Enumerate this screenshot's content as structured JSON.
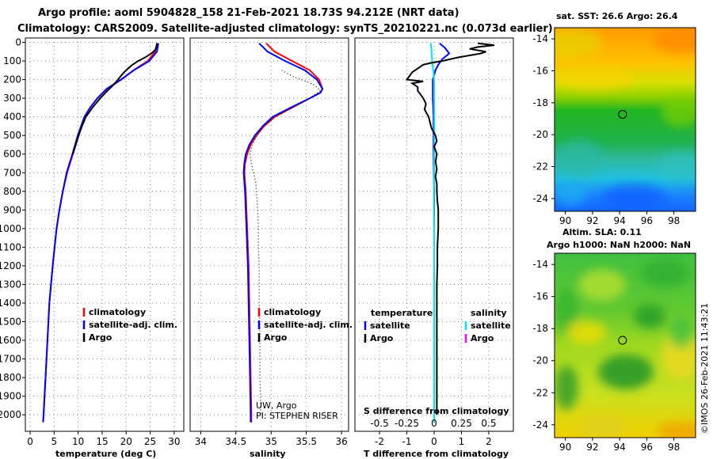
{
  "header": {
    "line1": "Argo profile: aoml 5904828_158 21-Feb-2021 18.73S 94.212E (NRT data)",
    "line2": "Climatology: CARS2009. Satellite-adjusted climatology: synTS_20210221.nc (0.073d earlier)"
  },
  "maps": {
    "top_title": "sat. SST: 26.6 Argo: 26.4",
    "mid_title1": "Altim. SLA: 0.11",
    "mid_title2": "Argo h1000: NaN h2000: NaN",
    "watermark": "©IMOS 26-Feb-2021 11:43:21"
  },
  "colors": {
    "climatology": "#ff0000",
    "satellite": "#0000ff",
    "argo": "#000000",
    "sat_salinity": "#00e5e5",
    "argo_salinity": "#ff00ff"
  },
  "chart_data": [
    {
      "type": "line",
      "panel": "temperature",
      "xlabel": "temperature (deg C)",
      "xticks": [
        0,
        5,
        10,
        15,
        20,
        25,
        30
      ],
      "xlim": [
        -1,
        32
      ],
      "ylim": [
        2080,
        -15
      ],
      "yticks": [
        0,
        100,
        200,
        300,
        400,
        500,
        600,
        700,
        800,
        900,
        1000,
        1100,
        1200,
        1300,
        1400,
        1500,
        1600,
        1700,
        1800,
        1900,
        2000
      ],
      "legend": [
        {
          "label": "climatology",
          "color": "#ff0000"
        },
        {
          "label": "satellite-adj. clim.",
          "color": "#0000ff"
        },
        {
          "label": "Argo",
          "color": "#000000"
        }
      ],
      "series": [
        {
          "name": "climatology",
          "color": "#ff0000",
          "depth": [
            5,
            50,
            100,
            150,
            200,
            250,
            300,
            350,
            400,
            500,
            600,
            700,
            800,
            900,
            1000,
            1200,
            1400,
            1600,
            1800,
            2000,
            2040
          ],
          "values": [
            26.5,
            26.0,
            24.5,
            21.5,
            19.0,
            16.0,
            14.0,
            12.5,
            11.3,
            10.0,
            8.9,
            7.7,
            6.8,
            6.1,
            5.5,
            4.7,
            4.0,
            3.6,
            3.2,
            2.8,
            2.7
          ]
        },
        {
          "name": "satellite-adj. clim.",
          "color": "#0000ff",
          "depth": [
            5,
            50,
            100,
            150,
            200,
            250,
            300,
            350,
            400,
            500,
            600,
            700,
            800,
            900,
            1000,
            1200,
            1400,
            1600,
            1800,
            2000,
            2040
          ],
          "values": [
            26.7,
            26.4,
            24.8,
            21.6,
            18.9,
            15.9,
            14.0,
            12.5,
            11.3,
            9.9,
            8.8,
            7.6,
            6.8,
            6.1,
            5.5,
            4.7,
            4.0,
            3.6,
            3.2,
            2.8,
            2.7
          ]
        },
        {
          "name": "Argo",
          "color": "#000000",
          "depth": [
            5,
            20,
            40,
            60,
            80,
            100,
            120,
            140,
            160,
            180,
            200,
            230,
            260,
            300,
            350,
            400,
            450,
            500,
            550,
            600
          ],
          "values": [
            26.4,
            26.3,
            26.1,
            25.2,
            24.0,
            22.5,
            21.3,
            20.4,
            19.6,
            18.9,
            18.3,
            17.3,
            16.1,
            14.6,
            13.0,
            11.6,
            10.8,
            10.1,
            9.5,
            8.9
          ]
        }
      ]
    },
    {
      "type": "line",
      "panel": "salinity",
      "xlabel": "salinity",
      "xticks": [
        34,
        34.5,
        35,
        35.5,
        36
      ],
      "xlim": [
        33.85,
        36.1
      ],
      "ylim": [
        2080,
        -15
      ],
      "legend": [
        {
          "label": "climatology",
          "color": "#ff0000"
        },
        {
          "label": "satellite-adj. clim.",
          "color": "#0000ff"
        },
        {
          "label": "Argo",
          "color": "#000000"
        }
      ],
      "annotations": [
        "UW, Argo",
        "PI: STEPHEN RISER"
      ],
      "series": [
        {
          "name": "climatology",
          "color": "#ff0000",
          "depth": [
            5,
            50,
            100,
            150,
            200,
            250,
            270,
            300,
            350,
            400,
            450,
            500,
            550,
            600,
            650,
            700,
            750,
            800,
            900,
            1000,
            1200,
            1400,
            1600,
            1800,
            2000,
            2040
          ],
          "values": [
            34.93,
            35.05,
            35.3,
            35.55,
            35.68,
            35.73,
            35.7,
            35.55,
            35.3,
            35.05,
            34.9,
            34.79,
            34.71,
            34.66,
            34.63,
            34.62,
            34.63,
            34.64,
            34.65,
            34.66,
            34.68,
            34.69,
            34.7,
            34.71,
            34.72,
            34.72
          ]
        },
        {
          "name": "satellite-adj. clim.",
          "color": "#0000ff",
          "depth": [
            5,
            50,
            100,
            150,
            200,
            250,
            270,
            300,
            350,
            400,
            450,
            500,
            550,
            600,
            650,
            700,
            750,
            800,
            900,
            1000,
            1200,
            1400,
            1600,
            1800,
            2000,
            2040
          ],
          "values": [
            34.83,
            34.95,
            35.2,
            35.48,
            35.65,
            35.73,
            35.7,
            35.55,
            35.28,
            35.02,
            34.88,
            34.77,
            34.69,
            34.64,
            34.62,
            34.61,
            34.62,
            34.63,
            34.64,
            34.65,
            34.67,
            34.68,
            34.69,
            34.7,
            34.71,
            34.71
          ]
        },
        {
          "name": "Argo",
          "color": "#000000",
          "depth": [
            150,
            170,
            190,
            210,
            230,
            260,
            300,
            350,
            400,
            450,
            500,
            550,
            600,
            650,
            700,
            750,
            800,
            850,
            900,
            1000,
            1100,
            1200,
            1300,
            1400,
            1500,
            1600,
            1700,
            1800,
            1900,
            2000
          ],
          "values": [
            35.15,
            35.25,
            35.35,
            35.5,
            35.62,
            35.7,
            35.55,
            35.3,
            35.05,
            34.9,
            34.8,
            34.73,
            34.7,
            34.72,
            34.75,
            34.78,
            34.79,
            34.8,
            34.81,
            34.82,
            34.82,
            34.83,
            34.83,
            34.83,
            34.84,
            34.84,
            34.84,
            34.84,
            34.85,
            34.85
          ]
        }
      ]
    },
    {
      "type": "line",
      "panel": "difference",
      "xlabel": "T difference from climatology",
      "xlabel_top": "S difference from climatology",
      "xticks": [
        -2,
        -1,
        0,
        1,
        2
      ],
      "xticks_top": [
        -0.5,
        -0.25,
        0,
        0.25,
        0.5
      ],
      "xlim": [
        -2.9,
        2.9
      ],
      "ylim": [
        2080,
        -15
      ],
      "legend_left_title": "temperature",
      "legend_right_title": "salinity",
      "legend": [
        {
          "label": "satellite",
          "color": "#0000ff",
          "side": "left"
        },
        {
          "label": "Argo",
          "color": "#000000",
          "side": "left"
        },
        {
          "label": "satellite",
          "color": "#00e5e5",
          "side": "right"
        },
        {
          "label": "Argo",
          "color": "#ff00ff",
          "side": "right"
        }
      ],
      "series": [
        {
          "name": "T satellite",
          "color": "#0000ff",
          "depth": [
            5,
            30,
            60,
            90,
            120,
            150,
            200,
            300,
            400,
            600,
            800,
            1000,
            1200,
            1500,
            1800,
            2040
          ],
          "values": [
            0.2,
            0.4,
            0.55,
            0.3,
            0.15,
            0.05,
            -0.05,
            -0.05,
            -0.02,
            -0.02,
            0,
            0,
            0,
            0,
            0,
            0
          ]
        },
        {
          "name": "S satellite",
          "color": "#00e5e5",
          "depth": [
            5,
            40,
            80,
            120,
            160,
            220,
            300,
            400,
            500,
            600,
            700,
            800,
            900,
            1000,
            1100,
            1200,
            1400,
            1600,
            1800,
            2040
          ],
          "values": [
            -0.12,
            -0.1,
            -0.08,
            -0.06,
            -0.02,
            0.0,
            0.0,
            0.01,
            0.01,
            0.0,
            0.0,
            -0.01,
            -0.01,
            0.0,
            0.0,
            0.0,
            0.0,
            0.0,
            0.0,
            0.0
          ]
        },
        {
          "name": "T Argo",
          "color": "#000000",
          "depth": [
            5,
            15,
            25,
            35,
            50,
            60,
            70,
            80,
            90,
            100,
            110,
            120,
            140,
            160,
            180,
            200,
            210,
            220,
            240,
            260,
            280,
            300,
            330,
            360,
            400,
            430,
            460,
            500,
            530,
            560,
            600,
            640,
            680,
            720,
            760,
            800,
            850,
            900,
            950,
            1000,
            1100,
            1200,
            1300,
            1400,
            1500,
            1600,
            1700,
            1800,
            1900,
            2000
          ],
          "values": [
            1.6,
            2.2,
            1.6,
            1.3,
            1.9,
            1.7,
            1.3,
            0.9,
            0.6,
            0.3,
            -0.1,
            -0.4,
            -0.6,
            -0.8,
            -0.9,
            -1.0,
            -0.4,
            -0.8,
            -0.6,
            -0.6,
            -0.5,
            -0.4,
            -0.3,
            -0.35,
            -0.2,
            -0.15,
            -0.1,
            0.05,
            0.1,
            0.0,
            0.1,
            0.05,
            0.1,
            0.05,
            0.1,
            0.1,
            0.12,
            0.15,
            0.15,
            0.15,
            0.12,
            0.12,
            0.1,
            0.1,
            0.1,
            0.1,
            0.1,
            0.1,
            0.1,
            0.1
          ]
        }
      ]
    },
    {
      "type": "heatmap",
      "panel": "sst_map",
      "title": "sat. SST: 26.6 Argo: 26.4",
      "xticks": [
        90,
        92,
        94,
        96,
        98
      ],
      "yticks": [
        -14,
        -16,
        -18,
        -20,
        -22,
        -24
      ],
      "xlim": [
        89.2,
        99.6
      ],
      "ylim": [
        -24.8,
        -13.3
      ],
      "marker": {
        "lon": 94.212,
        "lat": -18.73
      }
    },
    {
      "type": "heatmap",
      "panel": "sla_map",
      "title": "Altim. SLA: 0.11",
      "xticks": [
        90,
        92,
        94,
        96,
        98
      ],
      "yticks": [
        -14,
        -16,
        -18,
        -20,
        -22,
        -24
      ],
      "xlim": [
        89.2,
        99.6
      ],
      "ylim": [
        -24.8,
        -13.3
      ],
      "marker": {
        "lon": 94.212,
        "lat": -18.73
      }
    }
  ]
}
